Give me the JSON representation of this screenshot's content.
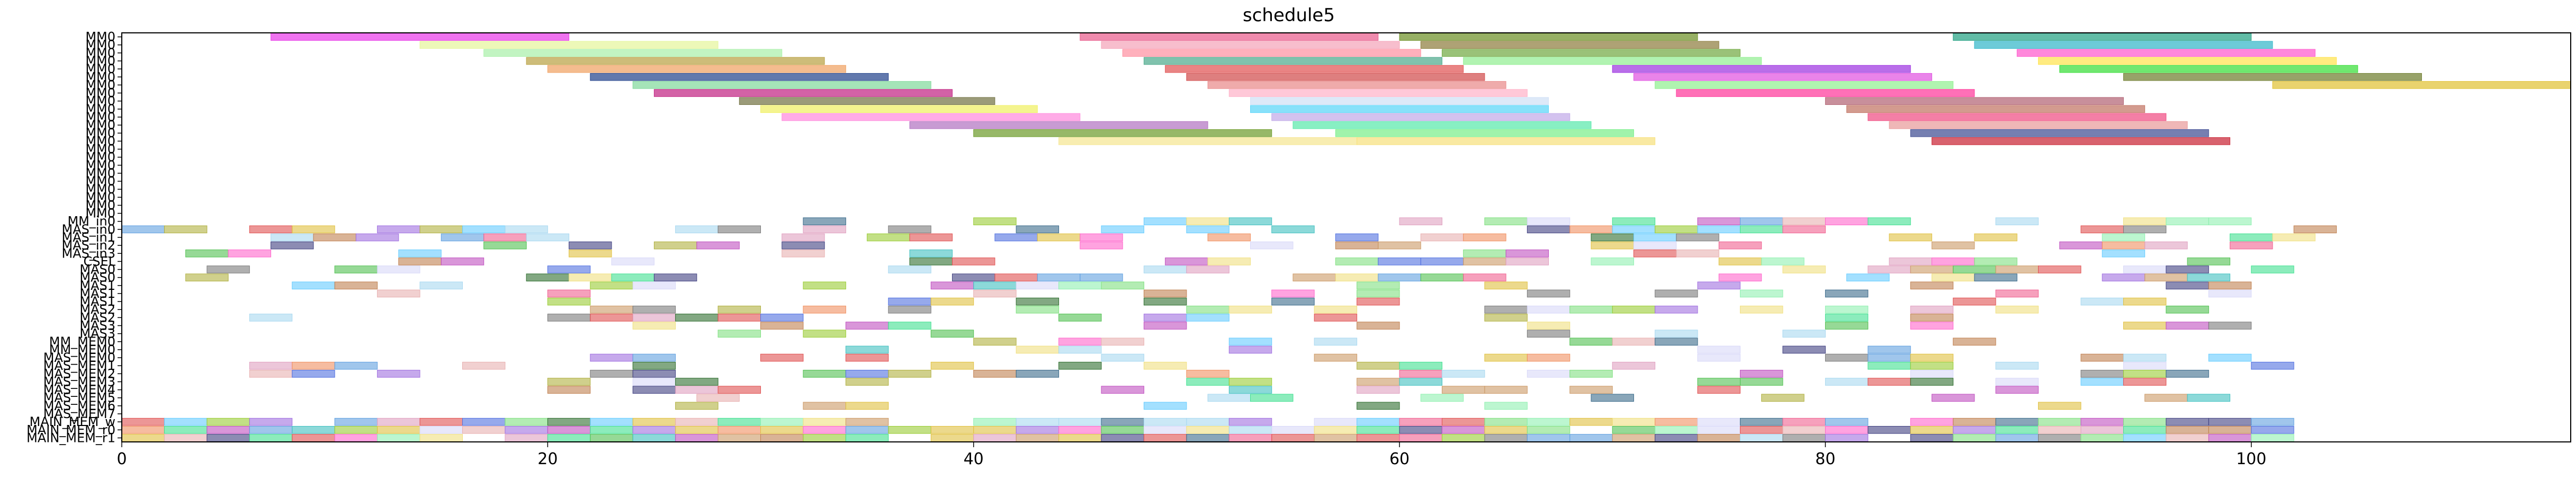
{
  "chart_data": {
    "type": "gantt",
    "title": "schedule5",
    "xlabel": "",
    "ylabel": "",
    "xlim": [
      0,
      115
    ],
    "grid": false,
    "legend": "none",
    "x_ticks": [
      0,
      20,
      40,
      60,
      80,
      100
    ],
    "x_tick_labels": [
      "0",
      "20",
      "40",
      "60",
      "80",
      "100"
    ],
    "rows": [
      "MM0",
      "MM0",
      "MM0",
      "MM0",
      "MM0",
      "MM0",
      "MM0",
      "MM0",
      "MM0",
      "MM0",
      "MM0",
      "MM0",
      "MM0",
      "MM0",
      "MM0",
      "MM0",
      "MM0",
      "MM0",
      "MM0",
      "MM0",
      "MM0",
      "MM0",
      "MM0",
      "MM_in0",
      "MAS_in0",
      "MAS_in1",
      "MAS_in2",
      "MAS_in3",
      "CSEL",
      "MAS0",
      "MAS0",
      "MAS1",
      "MAS1",
      "MAS1",
      "MAS2",
      "MAS2",
      "MAS3",
      "MAS3",
      "MM_MEM0",
      "MM_MEM0",
      "MAS_MEM0",
      "MAS_MEM1",
      "MAS_MEM2",
      "MAS_MEM3",
      "MAS_MEM4",
      "MAS_MEM5",
      "MAS_MEM6",
      "MAS_MEM7",
      "MAIN_MEM_w",
      "MAIN_MEM_r0",
      "MAIN_MEM_r1"
    ],
    "mm_tasks": [
      {
        "row": 0,
        "start": 7,
        "end": 21,
        "color": "#e838e8"
      },
      {
        "row": 0,
        "start": 45,
        "end": 59,
        "color": "#e85a8a"
      },
      {
        "row": 0,
        "start": 60,
        "end": 74,
        "color": "#6b8e23"
      },
      {
        "row": 0,
        "start": 86,
        "end": 100,
        "color": "#20a080"
      },
      {
        "row": 1,
        "start": 14,
        "end": 28,
        "color": "#e6f59a"
      },
      {
        "row": 1,
        "start": 46,
        "end": 60,
        "color": "#f4a3b8"
      },
      {
        "row": 1,
        "start": 61,
        "end": 75,
        "color": "#8b7a3a"
      },
      {
        "row": 1,
        "start": 87,
        "end": 101,
        "color": "#2fb5c8"
      },
      {
        "row": 2,
        "start": 17,
        "end": 31,
        "color": "#a8f0a8"
      },
      {
        "row": 2,
        "start": 47,
        "end": 61,
        "color": "#ff8fa0"
      },
      {
        "row": 2,
        "start": 62,
        "end": 76,
        "color": "#6fa83f"
      },
      {
        "row": 2,
        "start": 89,
        "end": 103,
        "color": "#ff55cc"
      },
      {
        "row": 3,
        "start": 19,
        "end": 33,
        "color": "#b8a040"
      },
      {
        "row": 3,
        "start": 48,
        "end": 62,
        "color": "#4aa88a"
      },
      {
        "row": 3,
        "start": 63,
        "end": 77,
        "color": "#90ee90"
      },
      {
        "row": 3,
        "start": 90,
        "end": 104,
        "color": "#ffe34a"
      },
      {
        "row": 4,
        "start": 20,
        "end": 34,
        "color": "#f0a060"
      },
      {
        "row": 4,
        "start": 49,
        "end": 63,
        "color": "#e05050"
      },
      {
        "row": 4,
        "start": 70,
        "end": 84,
        "color": "#9b30e0"
      },
      {
        "row": 4,
        "start": 91,
        "end": 105,
        "color": "#33dd33"
      },
      {
        "row": 5,
        "start": 22,
        "end": 36,
        "color": "#20408a"
      },
      {
        "row": 5,
        "start": 50,
        "end": 64,
        "color": "#d04848"
      },
      {
        "row": 5,
        "start": 71,
        "end": 85,
        "color": "#e050e0"
      },
      {
        "row": 5,
        "start": 94,
        "end": 108,
        "color": "#6b7a2a"
      },
      {
        "row": 6,
        "start": 24,
        "end": 38,
        "color": "#7fd89a"
      },
      {
        "row": 6,
        "start": 51,
        "end": 65,
        "color": "#e88888"
      },
      {
        "row": 6,
        "start": 72,
        "end": 86,
        "color": "#8ef08e"
      },
      {
        "row": 6,
        "start": 101,
        "end": 115,
        "color": "#e0c030"
      },
      {
        "row": 7,
        "start": 25,
        "end": 39,
        "color": "#c02080"
      },
      {
        "row": 7,
        "start": 52,
        "end": 66,
        "color": "#ffb0c8"
      },
      {
        "row": 7,
        "start": 73,
        "end": 87,
        "color": "#ff3399"
      },
      {
        "row": 8,
        "start": 29,
        "end": 41,
        "color": "#707040"
      },
      {
        "row": 8,
        "start": 53,
        "end": 67,
        "color": "#cfe0f5"
      },
      {
        "row": 8,
        "start": 80,
        "end": 94,
        "color": "#b06070"
      },
      {
        "row": 9,
        "start": 30,
        "end": 43,
        "color": "#f0f060"
      },
      {
        "row": 9,
        "start": 53,
        "end": 67,
        "color": "#55d4f8"
      },
      {
        "row": 9,
        "start": 81,
        "end": 95,
        "color": "#c07060"
      },
      {
        "row": 10,
        "start": 31,
        "end": 45,
        "color": "#ff88dd"
      },
      {
        "row": 10,
        "start": 54,
        "end": 68,
        "color": "#c0a8e8"
      },
      {
        "row": 10,
        "start": 82,
        "end": 96,
        "color": "#f04880"
      },
      {
        "row": 11,
        "start": 37,
        "end": 51,
        "color": "#b070c0"
      },
      {
        "row": 11,
        "start": 55,
        "end": 69,
        "color": "#55e8aa"
      },
      {
        "row": 11,
        "start": 83,
        "end": 97,
        "color": "#e89898"
      },
      {
        "row": 12,
        "start": 40,
        "end": 54,
        "color": "#6b9a28"
      },
      {
        "row": 12,
        "start": 57,
        "end": 71,
        "color": "#77ee88"
      },
      {
        "row": 12,
        "start": 84,
        "end": 98,
        "color": "#3a4890"
      },
      {
        "row": 13,
        "start": 44,
        "end": 58,
        "color": "#f5e690"
      },
      {
        "row": 13,
        "start": 58,
        "end": 72,
        "color": "#f7e07a"
      },
      {
        "row": 13,
        "start": 85,
        "end": 99,
        "color": "#c82030"
      }
    ],
    "small_tasks": []
  }
}
